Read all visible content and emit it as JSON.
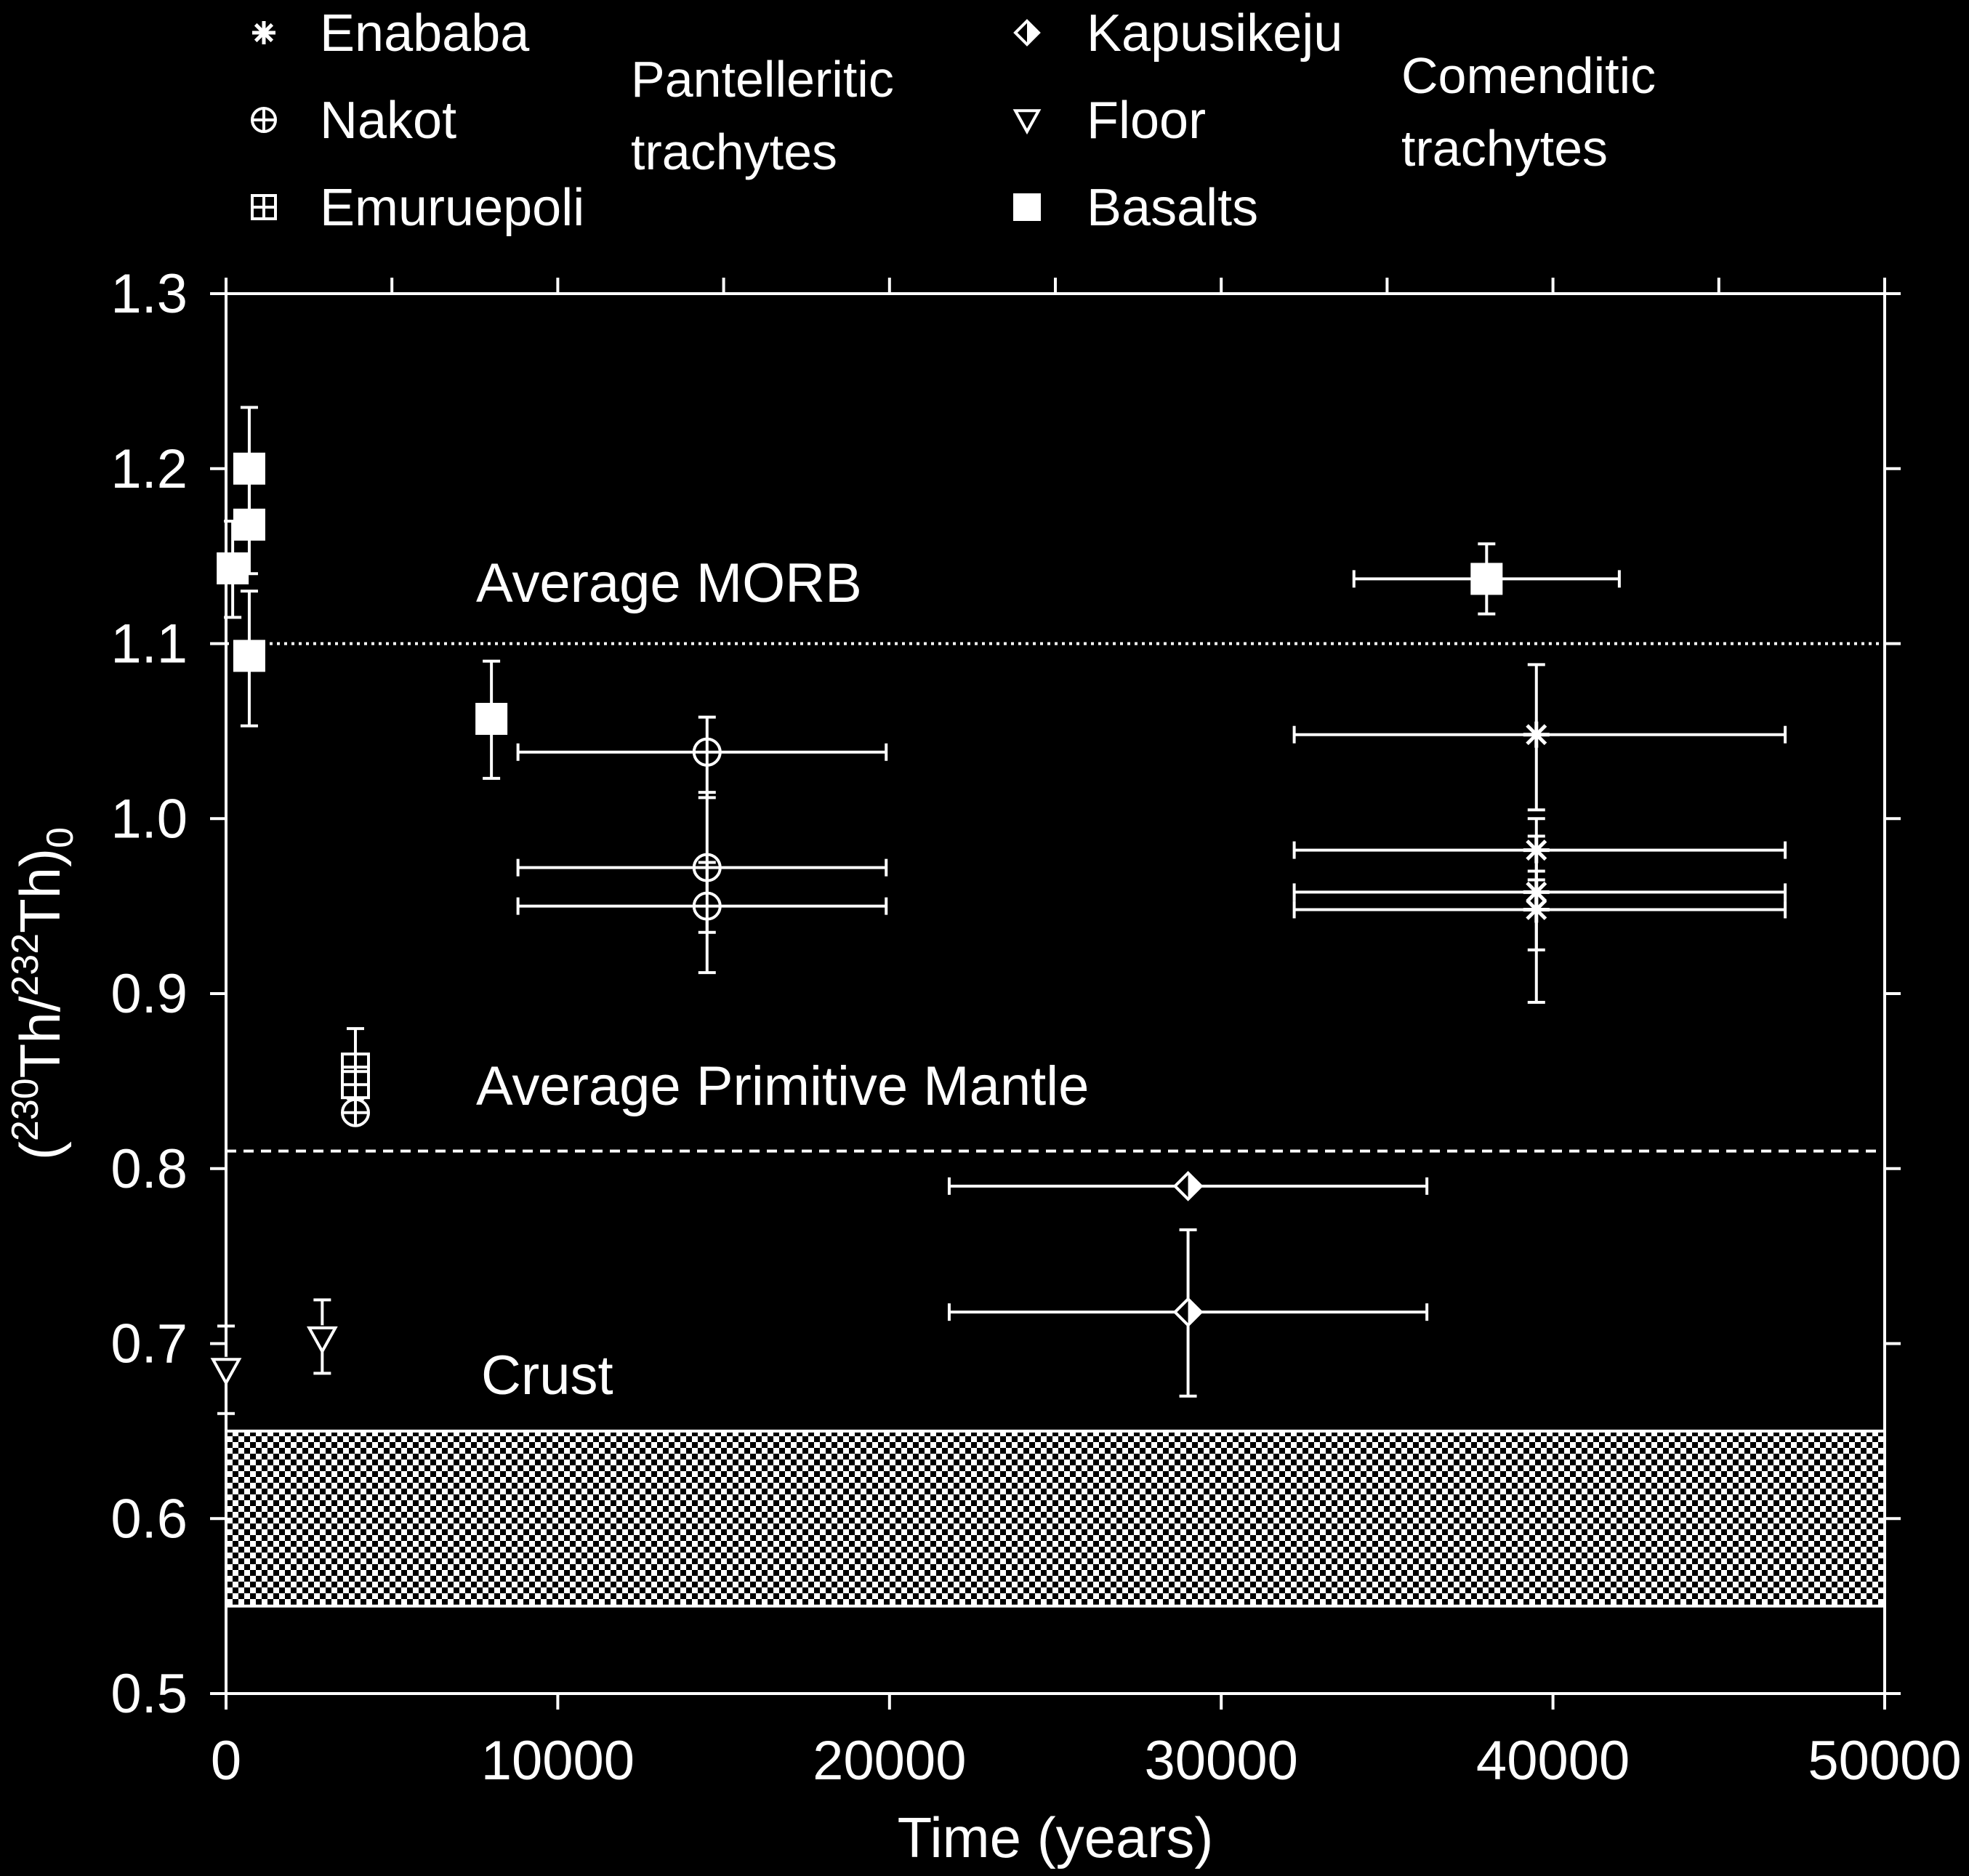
{
  "chart_data": {
    "type": "scatter",
    "title": "",
    "xlabel": "Time (years)",
    "ylabel": {
      "base": "(",
      "sup1": "230",
      "mid": "Th/",
      "sup2": "232",
      "end": "Th)",
      "sub": "0"
    },
    "xlim": [
      0,
      50000
    ],
    "ylim": [
      0.5,
      1.3
    ],
    "x_ticks": [
      "0",
      "10000",
      "20000",
      "30000",
      "40000",
      "50000"
    ],
    "y_ticks": [
      "0.5",
      "0.6",
      "0.7",
      "0.8",
      "0.9",
      "1.0",
      "1.1",
      "1.2",
      "1.3"
    ],
    "grid": false,
    "legend": {
      "placement": "top",
      "groups": [
        {
          "label": [
            "Pantelleritic",
            "trachytes"
          ],
          "entries": [
            "Enababa",
            "Nakot",
            "Emuruepoli"
          ]
        },
        {
          "label": [
            "Comenditic",
            "trachytes"
          ],
          "entries": [
            "Kapusikeju",
            "Floor",
            "Basalts"
          ]
        }
      ]
    },
    "reference_lines": [
      {
        "label": "Average MORB",
        "y": 1.1,
        "style": "dotted"
      },
      {
        "label": "Average Primitive Mantle",
        "y": 0.81,
        "style": "dashed"
      }
    ],
    "band": {
      "label": "Crust",
      "y": [
        0.55,
        0.65
      ],
      "style": "checker"
    },
    "series": [
      {
        "name": "Enababa",
        "marker": "asterisk",
        "points": [
          {
            "x": 39500,
            "y": 1.048,
            "xerr": [
              32200,
              47000
            ],
            "yerr": [
              1.005,
              1.088
            ]
          },
          {
            "x": 39500,
            "y": 0.982,
            "xerr": [
              32200,
              47000
            ],
            "yerr": [
              0.965,
              1.0
            ]
          },
          {
            "x": 39500,
            "y": 0.958,
            "xerr": [
              32200,
              47000
            ],
            "yerr": [
              0.925,
              0.99
            ]
          },
          {
            "x": 39500,
            "y": 0.948,
            "xerr": [
              32200,
              47000
            ],
            "yerr": [
              0.895,
              0.97
            ]
          }
        ]
      },
      {
        "name": "Nakot",
        "marker": "circle-plus",
        "points": [
          {
            "x": 14500,
            "y": 1.038,
            "xerr": [
              8800,
              19900
            ],
            "yerr": [
              1.012,
              1.058
            ]
          },
          {
            "x": 14500,
            "y": 0.972,
            "xerr": [
              8800,
              19900
            ],
            "yerr": [
              0.935,
              1.015
            ]
          },
          {
            "x": 14500,
            "y": 0.95,
            "xerr": [
              8800,
              19900
            ],
            "yerr": [
              0.912,
              0.975
            ]
          },
          {
            "x": 3900,
            "y": 0.832
          }
        ]
      },
      {
        "name": "Emuruepoli",
        "marker": "square-grid",
        "points": [
          {
            "x": 3900,
            "y": 0.858,
            "yerr": [
              0.84,
              0.88
            ]
          },
          {
            "x": 3900,
            "y": 0.848
          }
        ]
      },
      {
        "name": "Kapusikeju",
        "marker": "diamond",
        "points": [
          {
            "x": 29000,
            "y": 0.79,
            "xerr": [
              21800,
              36200
            ]
          },
          {
            "x": 29000,
            "y": 0.718,
            "xerr": [
              21800,
              36200
            ],
            "yerr": [
              0.67,
              0.765
            ]
          }
        ]
      },
      {
        "name": "Floor",
        "marker": "triangle-down",
        "points": [
          {
            "x": 0,
            "y": 0.685,
            "yerr": [
              0.66,
              0.71
            ]
          },
          {
            "x": 2900,
            "y": 0.703,
            "yerr": [
              0.683,
              0.725
            ]
          }
        ]
      },
      {
        "name": "Basalts",
        "marker": "square",
        "points": [
          {
            "x": 700,
            "y": 1.2,
            "yerr": [
              1.17,
              1.235
            ]
          },
          {
            "x": 700,
            "y": 1.168,
            "yerr": [
              1.14,
              1.2
            ]
          },
          {
            "x": 200,
            "y": 1.143,
            "yerr": [
              1.115,
              1.17
            ]
          },
          {
            "x": 700,
            "y": 1.093,
            "yerr": [
              1.053,
              1.13
            ]
          },
          {
            "x": 8000,
            "y": 1.057,
            "yerr": [
              1.023,
              1.09
            ]
          },
          {
            "x": 38000,
            "y": 1.137,
            "xerr": [
              34000,
              42000
            ],
            "yerr": [
              1.117,
              1.157
            ]
          }
        ]
      }
    ]
  }
}
